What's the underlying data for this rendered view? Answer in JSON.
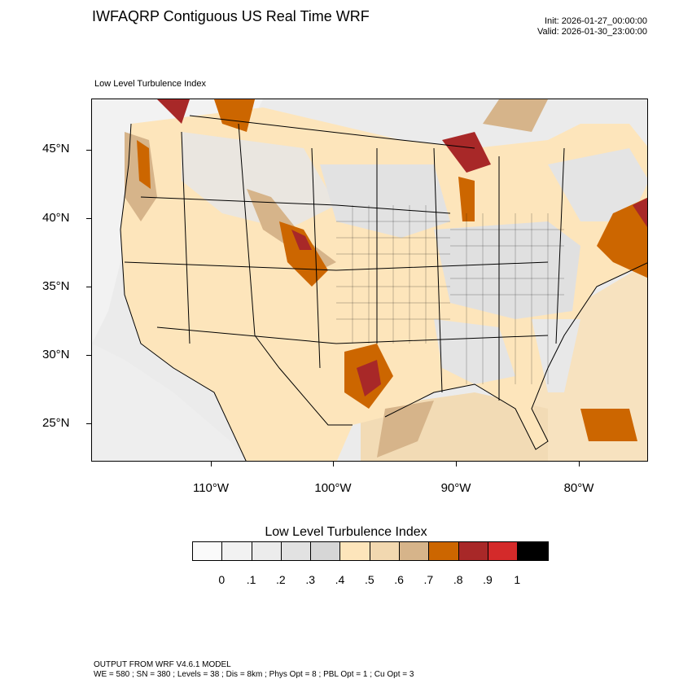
{
  "header": {
    "title": "IWFAQRP Contiguous US Real Time WRF",
    "init": "Init: 2026-01-27_00:00:00",
    "valid": "Valid: 2026-01-30_23:00:00"
  },
  "map": {
    "subtitle": "Low Level Turbulence Index",
    "lat_labels": [
      "45°N",
      "40°N",
      "35°N",
      "30°N",
      "25°N"
    ],
    "lon_labels": [
      "110°W",
      "100°W",
      "90°W",
      "80°W"
    ]
  },
  "legend": {
    "title": "Low Level Turbulence Index",
    "labels": [
      "0",
      ".1",
      ".2",
      ".3",
      ".4",
      ".5",
      ".6",
      ".7",
      ".8",
      ".9",
      "1"
    ],
    "colors": [
      "#fafafa",
      "#f2f2f2",
      "#ececec",
      "#e2e2e2",
      "#d6d6d6",
      "#fde5bb",
      "#f2d8b0",
      "#d6b48a",
      "#cc6600",
      "#a82828",
      "#d42a2a",
      "#000000"
    ]
  },
  "footer": {
    "line1": "OUTPUT FROM WRF V4.6.1 MODEL",
    "line2": "WE = 580 ; SN = 380 ; Levels = 38 ; Dis = 8km ; Phys Opt = 8 ; PBL Opt = 1 ; Cu Opt = 3"
  }
}
